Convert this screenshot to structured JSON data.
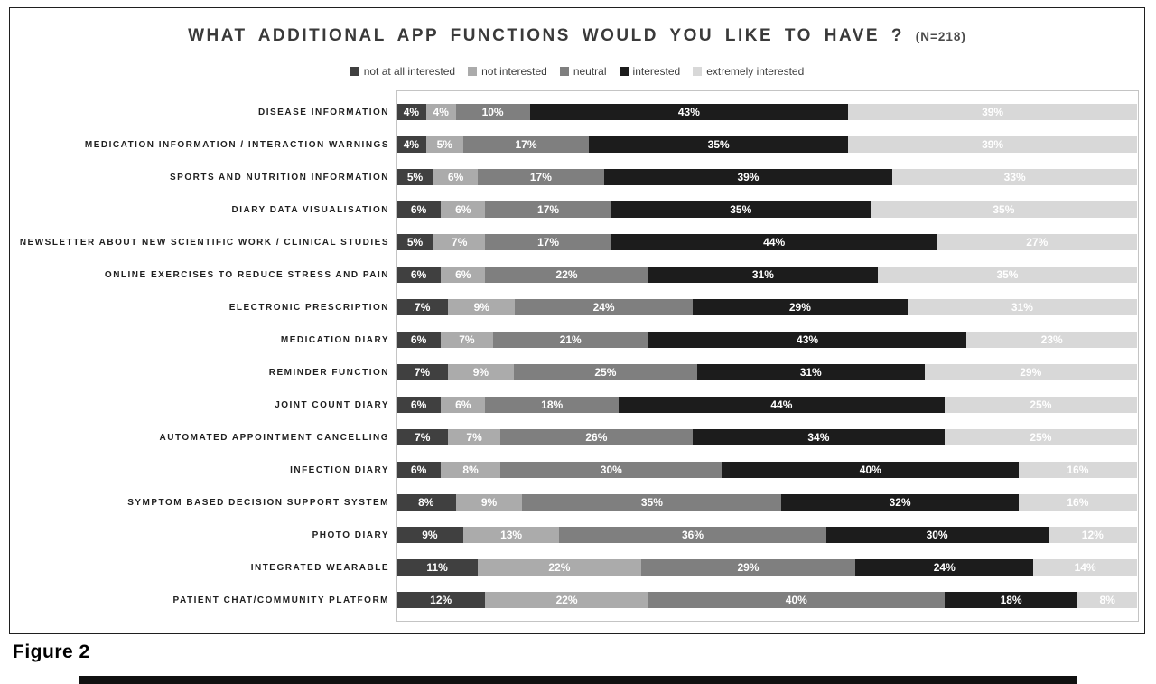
{
  "figure": {
    "caption": "Figure 2"
  },
  "chart_data": {
    "type": "bar",
    "stacked": true,
    "orientation": "horizontal",
    "title": "WHAT ADDITIONAL APP FUNCTIONS WOULD YOU LIKE TO HAVE ?",
    "title_suffix": "(N=218)",
    "legend_position": "top",
    "grid": false,
    "xlim": [
      0,
      100
    ],
    "value_suffix": "%",
    "colors": [
      "#404040",
      "#ababab",
      "#7f7f7f",
      "#1c1c1c",
      "#d8d8d8"
    ],
    "label_color": "#ffffff",
    "categories": [
      "DISEASE INFORMATION",
      "MEDICATION INFORMATION / INTERACTION WARNINGS",
      "SPORTS AND NUTRITION INFORMATION",
      "DIARY DATA VISUALISATION",
      "NEWSLETTER ABOUT NEW SCIENTIFIC WORK / CLINICAL STUDIES",
      "ONLINE EXERCISES TO REDUCE STRESS AND PAIN",
      "ELECTRONIC PRESCRIPTION",
      "MEDICATION DIARY",
      "REMINDER FUNCTION",
      "JOINT COUNT DIARY",
      "AUTOMATED APPOINTMENT CANCELLING",
      "INFECTION DIARY",
      "SYMPTOM BASED DECISION SUPPORT SYSTEM",
      "PHOTO DIARY",
      "INTEGRATED WEARABLE",
      "PATIENT CHAT/COMMUNITY PLATFORM"
    ],
    "series": [
      {
        "name": "not at all interested",
        "values": [
          4,
          4,
          5,
          6,
          5,
          6,
          7,
          6,
          7,
          6,
          7,
          6,
          8,
          9,
          11,
          12
        ]
      },
      {
        "name": "not interested",
        "values": [
          4,
          5,
          6,
          6,
          7,
          6,
          9,
          7,
          9,
          6,
          7,
          8,
          9,
          13,
          22,
          22
        ]
      },
      {
        "name": "neutral",
        "values": [
          10,
          17,
          17,
          17,
          17,
          22,
          24,
          21,
          25,
          18,
          26,
          30,
          35,
          36,
          29,
          40
        ]
      },
      {
        "name": "interested",
        "values": [
          43,
          35,
          39,
          35,
          44,
          31,
          29,
          43,
          31,
          44,
          34,
          40,
          32,
          30,
          24,
          18
        ]
      },
      {
        "name": "extremely interested",
        "values": [
          39,
          39,
          33,
          35,
          27,
          35,
          31,
          23,
          29,
          25,
          25,
          16,
          16,
          12,
          14,
          8
        ]
      }
    ]
  }
}
